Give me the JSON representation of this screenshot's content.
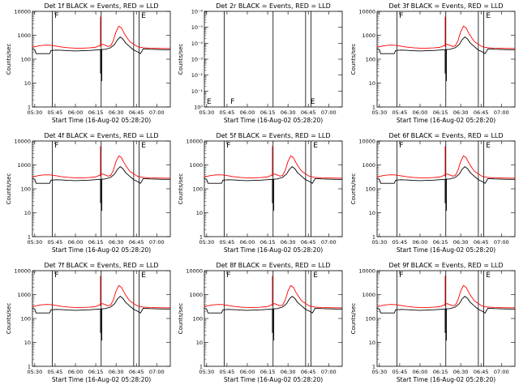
{
  "figure": {
    "xlabel": "Start Time (16-Aug-02 05:28:20)",
    "ylabel": "Counts/sec",
    "colors": {
      "events": "#000000",
      "lld": "#ff0000",
      "axes": "#000000"
    }
  },
  "chart_data": [
    {
      "type": "line",
      "title": "Det 1f  BLACK = Events, RED = LLD",
      "xlabel": "Start Time (16-Aug-02 05:28:20)",
      "ylabel": "Counts/sec",
      "yscale": "log",
      "ylim": [
        1,
        10000
      ],
      "xticks": [
        "05:30",
        "05:45",
        "06:00",
        "06:15",
        "06:30",
        "06:45",
        "07:00"
      ],
      "yticks": [
        "1",
        "10",
        "100",
        "1000",
        "10000"
      ],
      "grid": false,
      "marks": [
        "F",
        "E"
      ],
      "series": [
        {
          "name": "Events",
          "color": "#000000",
          "profile": "events"
        },
        {
          "name": "LLD",
          "color": "#ff0000",
          "profile": "lld"
        }
      ]
    },
    {
      "type": "line",
      "title": "Det 2r  BLACK = Events, RED = LLD",
      "xlabel": "Start Time (16-Aug-02 05:28:20)",
      "ylabel": "Counts/sec",
      "yscale": "log",
      "ylim": [
        1,
        1e-06
      ],
      "xticks": [
        "05:30",
        "05:45",
        "06:00",
        "06:15",
        "06:30",
        "06:45",
        "07:00"
      ],
      "yticks": [
        "10⁰",
        "10⁻¹",
        "10⁻²",
        "10⁻³",
        "10⁻⁴",
        "10⁻⁵",
        "10⁻⁶"
      ],
      "grid": false,
      "marks": [
        "E",
        "F",
        "E"
      ],
      "series": []
    },
    {
      "type": "line",
      "title": "Det 3f  BLACK = Events, RED = LLD",
      "xlabel": "Start Time (16-Aug-02 05:28:20)",
      "ylabel": "Counts/sec",
      "yscale": "log",
      "ylim": [
        1,
        10000
      ],
      "xticks": [
        "05:30",
        "05:45",
        "06:00",
        "06:15",
        "06:30",
        "06:45",
        "07:00"
      ],
      "yticks": [
        "1",
        "10",
        "100",
        "1000",
        "10000"
      ],
      "grid": false,
      "marks": [
        "F",
        "E"
      ],
      "series": [
        {
          "name": "Events",
          "color": "#000000",
          "profile": "events"
        },
        {
          "name": "LLD",
          "color": "#ff0000",
          "profile": "lld"
        }
      ]
    },
    {
      "type": "line",
      "title": "Det 4f  BLACK = Events, RED = LLD",
      "xlabel": "Start Time (16-Aug-02 05:28:20)",
      "ylabel": "Counts/sec",
      "yscale": "log",
      "ylim": [
        1,
        10000
      ],
      "xticks": [
        "05:30",
        "05:45",
        "06:00",
        "06:15",
        "06:30",
        "06:45",
        "07:00"
      ],
      "yticks": [
        "1",
        "10",
        "100",
        "1000",
        "10000"
      ],
      "grid": false,
      "marks": [
        "F",
        "E"
      ],
      "series": [
        {
          "name": "Events",
          "color": "#000000",
          "profile": "events"
        },
        {
          "name": "LLD",
          "color": "#ff0000",
          "profile": "lld"
        }
      ]
    },
    {
      "type": "line",
      "title": "Det 5f  BLACK = Events, RED = LLD",
      "xlabel": "Start Time (16-Aug-02 05:28:20)",
      "ylabel": "Counts/sec",
      "yscale": "log",
      "ylim": [
        1,
        10000
      ],
      "xticks": [
        "05:30",
        "05:45",
        "06:00",
        "06:15",
        "06:30",
        "06:45",
        "07:00"
      ],
      "yticks": [
        "1",
        "10",
        "100",
        "1000",
        "10000"
      ],
      "grid": false,
      "marks": [
        "F",
        "E"
      ],
      "series": [
        {
          "name": "Events",
          "color": "#000000",
          "profile": "events"
        },
        {
          "name": "LLD",
          "color": "#ff0000",
          "profile": "lld"
        }
      ]
    },
    {
      "type": "line",
      "title": "Det 6f  BLACK = Events, RED = LLD",
      "xlabel": "Start Time (16-Aug-02 05:28:20)",
      "ylabel": "Counts/sec",
      "yscale": "log",
      "ylim": [
        1,
        10000
      ],
      "xticks": [
        "05:30",
        "05:45",
        "06:00",
        "06:15",
        "06:30",
        "06:45",
        "07:00"
      ],
      "yticks": [
        "1",
        "10",
        "100",
        "1000",
        "10000"
      ],
      "grid": false,
      "marks": [
        "F",
        "E"
      ],
      "series": [
        {
          "name": "Events",
          "color": "#000000",
          "profile": "events"
        },
        {
          "name": "LLD",
          "color": "#ff0000",
          "profile": "lld"
        }
      ]
    },
    {
      "type": "line",
      "title": "Det 7f  BLACK = Events, RED = LLD",
      "xlabel": "Start Time (16-Aug-02 05:28:20)",
      "ylabel": "Counts/sec",
      "yscale": "log",
      "ylim": [
        1,
        10000
      ],
      "xticks": [
        "05:30",
        "05:45",
        "06:00",
        "06:15",
        "06:30",
        "06:45",
        "07:00"
      ],
      "yticks": [
        "1",
        "10",
        "100",
        "1000",
        "10000"
      ],
      "grid": false,
      "marks": [
        "F",
        "E"
      ],
      "series": [
        {
          "name": "Events",
          "color": "#000000",
          "profile": "events"
        },
        {
          "name": "LLD",
          "color": "#ff0000",
          "profile": "lld"
        }
      ]
    },
    {
      "type": "line",
      "title": "Det 8f  BLACK = Events, RED = LLD",
      "xlabel": "Start Time (16-Aug-02 05:28:20)",
      "ylabel": "Counts/sec",
      "yscale": "log",
      "ylim": [
        1,
        10000
      ],
      "xticks": [
        "05:30",
        "05:45",
        "06:00",
        "06:15",
        "06:30",
        "06:45",
        "07:00"
      ],
      "yticks": [
        "1",
        "10",
        "100",
        "1000",
        "10000"
      ],
      "grid": false,
      "marks": [
        "F",
        "E"
      ],
      "series": [
        {
          "name": "Events",
          "color": "#000000",
          "profile": "events"
        },
        {
          "name": "LLD",
          "color": "#ff0000",
          "profile": "lld"
        }
      ]
    },
    {
      "type": "line",
      "title": "Det 9f  BLACK = Events, RED = LLD",
      "xlabel": "Start Time (16-Aug-02 05:28:20)",
      "ylabel": "Counts/sec",
      "yscale": "log",
      "ylim": [
        1,
        10000
      ],
      "xticks": [
        "05:30",
        "05:45",
        "06:00",
        "06:15",
        "06:30",
        "06:45",
        "07:00"
      ],
      "yticks": [
        "1",
        "10",
        "100",
        "1000",
        "10000"
      ],
      "grid": false,
      "marks": [
        "F",
        "E"
      ],
      "series": [
        {
          "name": "Events",
          "color": "#000000",
          "profile": "events"
        },
        {
          "name": "LLD",
          "color": "#ff0000",
          "profile": "lld"
        }
      ]
    }
  ],
  "profiles": {
    "lld": [
      [
        "05:28",
        330
      ],
      [
        "05:30",
        330
      ],
      [
        "05:33",
        360
      ],
      [
        "05:36",
        380
      ],
      [
        "05:39",
        385
      ],
      [
        "05:42",
        380
      ],
      [
        "05:46",
        350
      ],
      [
        "05:50",
        320
      ],
      [
        "05:55",
        300
      ],
      [
        "06:00",
        290
      ],
      [
        "06:05",
        290
      ],
      [
        "06:10",
        295
      ],
      [
        "06:14",
        310
      ],
      [
        "06:16",
        330
      ],
      [
        "06:18",
        380
      ],
      [
        "06:20",
        420
      ],
      [
        "06:22",
        380
      ],
      [
        "06:24",
        340
      ],
      [
        "06:26",
        360
      ],
      [
        "06:28",
        600
      ],
      [
        "06:30",
        1400
      ],
      [
        "06:32",
        2400
      ],
      [
        "06:34",
        2000
      ],
      [
        "06:36",
        1200
      ],
      [
        "06:38",
        800
      ],
      [
        "06:40",
        550
      ],
      [
        "06:43",
        420
      ],
      [
        "06:46",
        330
      ],
      [
        "06:50",
        300
      ],
      [
        "06:55",
        290
      ],
      [
        "07:05",
        280
      ],
      [
        "07:10",
        280
      ]
    ],
    "events": [
      [
        "05:28",
        270
      ],
      [
        "05:30",
        250
      ],
      [
        "05:31",
        170
      ],
      [
        "05:36",
        170
      ],
      [
        "05:41",
        170
      ],
      [
        "05:42",
        230
      ],
      [
        "05:46",
        240
      ],
      [
        "05:50",
        235
      ],
      [
        "05:55",
        225
      ],
      [
        "06:00",
        220
      ],
      [
        "06:05",
        225
      ],
      [
        "06:10",
        230
      ],
      [
        "06:14",
        240
      ],
      [
        "06:18",
        250
      ],
      [
        "06:22",
        260
      ],
      [
        "06:26",
        300
      ],
      [
        "06:29",
        420
      ],
      [
        "06:31",
        650
      ],
      [
        "06:33",
        850
      ],
      [
        "06:35",
        700
      ],
      [
        "06:37",
        480
      ],
      [
        "06:39",
        380
      ],
      [
        "06:41",
        300
      ],
      [
        "06:43",
        240
      ],
      [
        "06:46",
        200
      ],
      [
        "06:48",
        170
      ],
      [
        "06:50",
        270
      ],
      [
        "06:55",
        260
      ],
      [
        "07:05",
        250
      ],
      [
        "07:10",
        250
      ]
    ],
    "vlines": [
      "05:43",
      "06:19",
      "06:43",
      "06:47"
    ],
    "spikes": [
      [
        "06:18.5",
        25,
        "events"
      ],
      [
        "06:18.5",
        6000,
        "lld"
      ],
      [
        "06:19.5",
        12,
        "events"
      ]
    ]
  }
}
